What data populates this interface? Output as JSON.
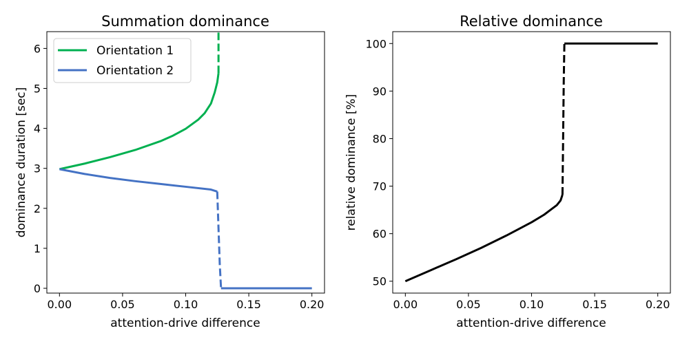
{
  "colors": {
    "orientation1": "#00b050",
    "orientation2": "#4472c4",
    "relative": "#000000"
  },
  "chart_data": [
    {
      "type": "line",
      "title": "Summation dominance",
      "xlabel": "attention-drive difference",
      "ylabel": "dominance duration [sec]",
      "xlim": [
        -0.01,
        0.21
      ],
      "ylim": [
        -0.12,
        6.42
      ],
      "xticks": [
        0.0,
        0.05,
        0.1,
        0.15,
        0.2
      ],
      "xtick_labels": [
        "0.00",
        "0.05",
        "0.10",
        "0.15",
        "0.20"
      ],
      "yticks": [
        0,
        1,
        2,
        3,
        4,
        5,
        6
      ],
      "ytick_labels": [
        "0",
        "1",
        "2",
        "3",
        "4",
        "5",
        "6"
      ],
      "grid": false,
      "legend": "top-left",
      "series": [
        {
          "name": "Orientation 1",
          "color_key": "orientation1",
          "segments": [
            {
              "style": "solid",
              "x": [
                0.0,
                0.02,
                0.04,
                0.06,
                0.08,
                0.09,
                0.1,
                0.11,
                0.115,
                0.12,
                0.123,
                0.125,
                0.126
              ],
              "y": [
                2.98,
                3.12,
                3.28,
                3.46,
                3.68,
                3.82,
                3.99,
                4.22,
                4.38,
                4.62,
                4.9,
                5.15,
                5.38
              ]
            },
            {
              "style": "dashed",
              "x": [
                0.126,
                0.126
              ],
              "y": [
                5.38,
                6.42
              ]
            }
          ]
        },
        {
          "name": "Orientation 2",
          "color_key": "orientation2",
          "segments": [
            {
              "style": "solid",
              "x": [
                0.0,
                0.02,
                0.04,
                0.06,
                0.08,
                0.1,
                0.12,
                0.125
              ],
              "y": [
                2.98,
                2.86,
                2.76,
                2.68,
                2.61,
                2.54,
                2.47,
                2.42
              ]
            },
            {
              "style": "dashed",
              "x": [
                0.125,
                0.126,
                0.127,
                0.128
              ],
              "y": [
                2.42,
                1.5,
                0.6,
                0.0
              ]
            },
            {
              "style": "solid",
              "x": [
                0.128,
                0.2
              ],
              "y": [
                0.0,
                0.0
              ]
            }
          ]
        }
      ]
    },
    {
      "type": "line",
      "title": "Relative dominance",
      "xlabel": "attention-drive difference",
      "ylabel": "relative dominance [%]",
      "xlim": [
        -0.01,
        0.21
      ],
      "ylim": [
        47.5,
        102.5
      ],
      "xticks": [
        0.0,
        0.05,
        0.1,
        0.15,
        0.2
      ],
      "xtick_labels": [
        "0.00",
        "0.05",
        "0.10",
        "0.15",
        "0.20"
      ],
      "yticks": [
        50,
        60,
        70,
        80,
        90,
        100
      ],
      "ytick_labels": [
        "50",
        "60",
        "70",
        "80",
        "90",
        "100"
      ],
      "grid": false,
      "series": [
        {
          "color_key": "relative",
          "segments": [
            {
              "style": "solid",
              "x": [
                0.0,
                0.02,
                0.04,
                0.06,
                0.08,
                0.1,
                0.11,
                0.115,
                0.12,
                0.123,
                0.1245
              ],
              "y": [
                50.0,
                52.3,
                54.6,
                57.0,
                59.6,
                62.4,
                64.0,
                65.0,
                66.0,
                67.0,
                68.2
              ]
            },
            {
              "style": "dashed",
              "x": [
                0.1245,
                0.125,
                0.1255,
                0.126
              ],
              "y": [
                68.2,
                80.0,
                92.0,
                100.0
              ]
            },
            {
              "style": "solid",
              "x": [
                0.126,
                0.2
              ],
              "y": [
                100.0,
                100.0
              ]
            }
          ]
        }
      ]
    }
  ]
}
